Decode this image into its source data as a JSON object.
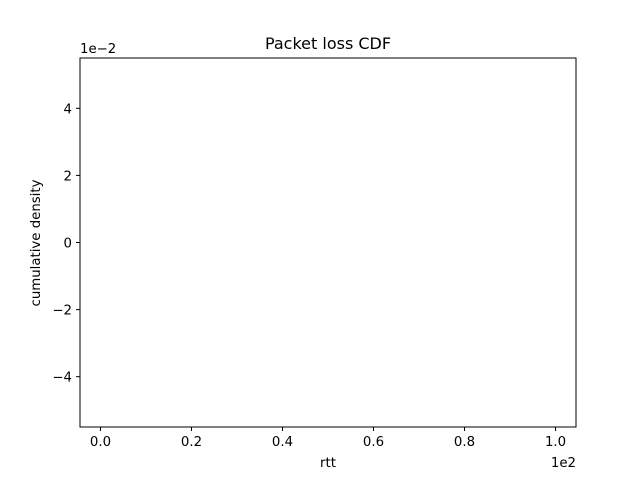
{
  "chart_data": {
    "type": "line",
    "title": "Packet loss CDF",
    "xlabel": "rtt",
    "ylabel": "cumulative density",
    "x_offset_text": "1e2",
    "y_offset_text": "1e−2",
    "xlim": [
      -0.045,
      1.045
    ],
    "ylim": [
      -5.5,
      5.5
    ],
    "x_ticks": [
      {
        "value": 0.0,
        "label": "0.0"
      },
      {
        "value": 0.2,
        "label": "0.2"
      },
      {
        "value": 0.4,
        "label": "0.4"
      },
      {
        "value": 0.6,
        "label": "0.6"
      },
      {
        "value": 0.8,
        "label": "0.8"
      },
      {
        "value": 1.0,
        "label": "1.0"
      }
    ],
    "y_ticks": [
      {
        "value": -4,
        "label": "−4"
      },
      {
        "value": -2,
        "label": "−2"
      },
      {
        "value": 0,
        "label": "0"
      },
      {
        "value": 2,
        "label": "2"
      },
      {
        "value": 4,
        "label": "4"
      }
    ],
    "series": [],
    "grid": false,
    "colors": {
      "axes": "#000000",
      "background": "#ffffff"
    }
  }
}
